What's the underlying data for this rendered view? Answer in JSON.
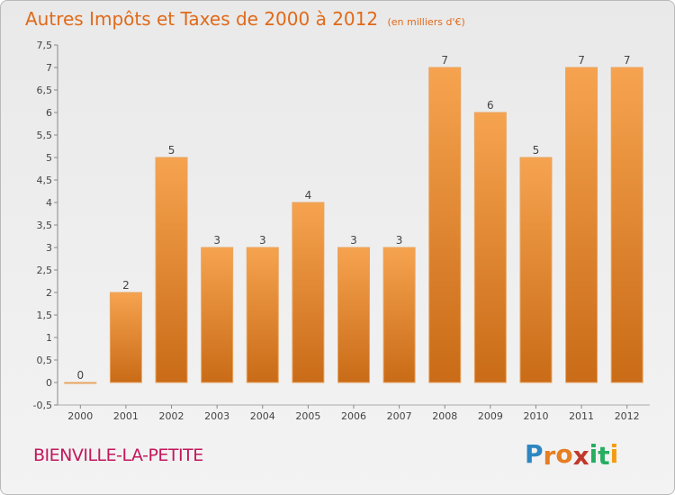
{
  "header": {
    "title": "Autres Impôts et Taxes de 2000 à 2012",
    "subtitle": "(en milliers d'€)"
  },
  "footer": {
    "place": "BIENVILLE-LA-PETITE",
    "logo_letters": [
      "P",
      "r",
      "o",
      "x",
      "i",
      "t",
      "i"
    ],
    "logo_colors": [
      "#2e86c1",
      "#e67e22",
      "#e67e22",
      "#c0392b",
      "#27ae60",
      "#27ae60",
      "#f39c12"
    ]
  },
  "chart_data": {
    "type": "bar",
    "title": "Autres Impôts et Taxes de 2000 à 2012",
    "subtitle": "(en milliers d'€)",
    "categories": [
      "2000",
      "2001",
      "2002",
      "2003",
      "2004",
      "2005",
      "2006",
      "2007",
      "2008",
      "2009",
      "2010",
      "2011",
      "2012"
    ],
    "values": [
      0,
      2,
      5,
      3,
      3,
      4,
      3,
      3,
      7,
      6,
      5,
      7,
      7
    ],
    "data_labels": [
      "0",
      "2",
      "5",
      "3",
      "3",
      "4",
      "3",
      "3",
      "7",
      "6",
      "5",
      "7",
      "7"
    ],
    "ylim": [
      -0.5,
      7.5
    ],
    "yticks": [
      "-0,5",
      "0",
      "0,5",
      "1",
      "1,5",
      "2",
      "2,5",
      "3",
      "3,5",
      "4",
      "4,5",
      "5",
      "5,5",
      "6",
      "6,5",
      "7",
      "7,5"
    ],
    "grid": false,
    "bar_color_top": "#f6a34f",
    "bar_color_bottom": "#c96b17",
    "title_color": "#e06a1a",
    "place_color": "#c2185b"
  }
}
